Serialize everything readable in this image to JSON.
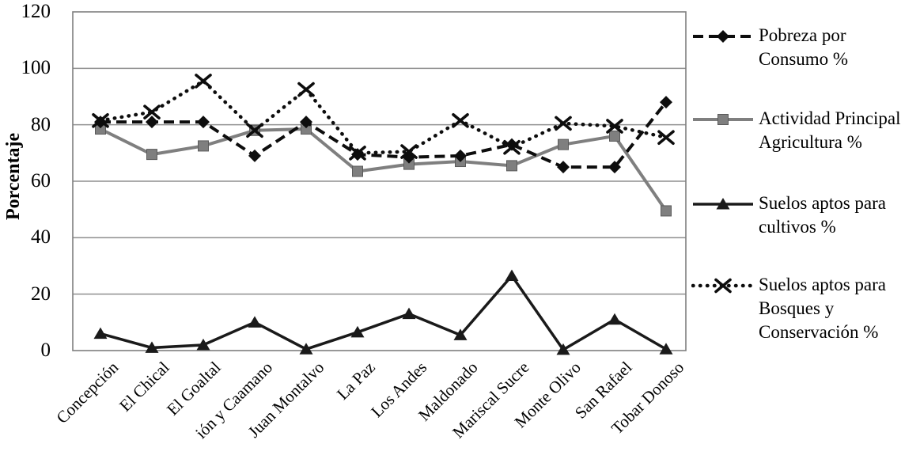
{
  "colors": {
    "background": "#ffffff",
    "grid": "#8f8f8f",
    "border": "#7f7f7f",
    "text": "#000000",
    "series_black": "#0d0d0d",
    "series_gray": "#7f7f7f"
  },
  "chart_data": {
    "type": "line",
    "title": "",
    "xlabel": "",
    "ylabel": "Porcentaje",
    "ylim": [
      0,
      120
    ],
    "ystep": 20,
    "yticks": [
      0,
      20,
      40,
      60,
      80,
      100,
      120
    ],
    "grid": "horizontal-only",
    "legend_position": "right",
    "x_label_rotation_deg": -45,
    "categories": [
      "Concepción",
      "El Chical",
      "El Goaltal",
      "ión y Caamano",
      "Juan Montalvo",
      "La Paz",
      "Los Andes",
      "Maldonado",
      "Mariscal Sucre",
      "Monte Olivo",
      "San Rafael",
      "Tobar Donoso"
    ],
    "series": [
      {
        "key": "pobreza-por-consumo",
        "name": "Pobreza por Consumo %",
        "label_lines": [
          "Pobreza por",
          "Consumo %"
        ],
        "style": "dashed",
        "marker": "diamond",
        "color": "#0d0d0d",
        "values": [
          81,
          81,
          81,
          69,
          81,
          69.5,
          68.5,
          69,
          73,
          65,
          65,
          88
        ]
      },
      {
        "key": "actividad-principal-agricultura",
        "name": "Actividad Principal Agricultura %",
        "label_lines": [
          "Actividad Principal",
          "Agricultura %"
        ],
        "style": "solid",
        "marker": "square",
        "color": "#7f7f7f",
        "values": [
          78.5,
          69.5,
          72.5,
          78,
          78.5,
          63.5,
          66,
          67,
          65.5,
          73,
          76,
          49.5
        ]
      },
      {
        "key": "suelos-aptos-cultivos",
        "name": "Suelos aptos para cultivos %",
        "label_lines": [
          "Suelos aptos  para",
          "cultivos %"
        ],
        "style": "solid",
        "marker": "triangle",
        "color": "#1a1a1a",
        "values": [
          6,
          1,
          2,
          10,
          0.5,
          6.5,
          13,
          5.5,
          26.5,
          0.3,
          11,
          0.5
        ]
      },
      {
        "key": "suelos-aptos-bosques-conservacion",
        "name": "Suelos aptos para Bosques y Conservación %",
        "label_lines": [
          "Suelos aptos para",
          "Bosques y",
          "Conservación  %"
        ],
        "style": "dotted",
        "marker": "x",
        "color": "#0d0d0d",
        "values": [
          81.5,
          84.5,
          95.5,
          78,
          92.5,
          70,
          70.5,
          81.5,
          72,
          80.5,
          79.5,
          75.5
        ]
      }
    ]
  }
}
